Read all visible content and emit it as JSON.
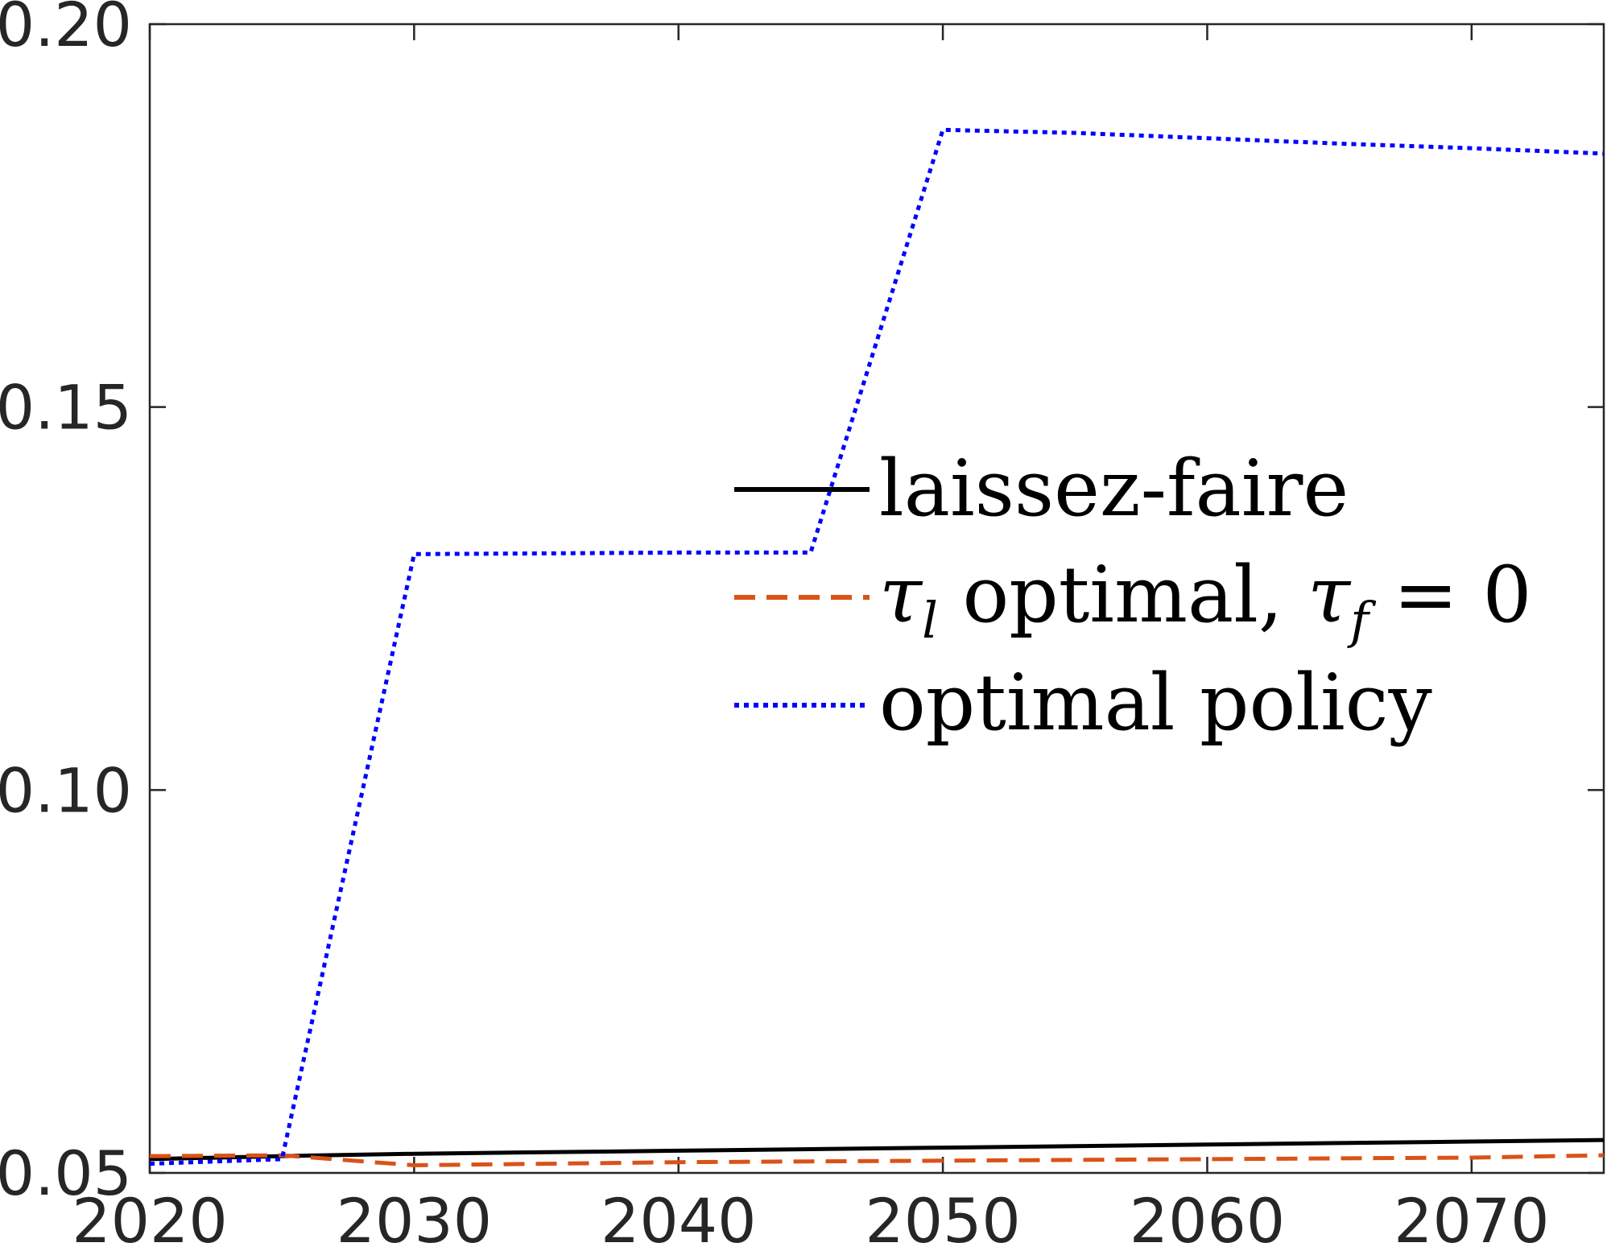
{
  "chart_data": {
    "type": "line",
    "title": "",
    "xlabel": "",
    "ylabel": "",
    "xlim": [
      2020,
      2075
    ],
    "ylim": [
      0.05,
      0.2
    ],
    "xticks": [
      2020,
      2030,
      2040,
      2050,
      2060,
      2070
    ],
    "xtick_labels": [
      "2020",
      "2030",
      "2040",
      "2050",
      "2060",
      "2070"
    ],
    "yticks": [
      0.05,
      0.1,
      0.15,
      0.2
    ],
    "ytick_labels": [
      "0.05",
      "0.10",
      "0.15",
      "0.20"
    ],
    "grid": false,
    "legend_position": "center-right",
    "x": [
      2020,
      2025,
      2030,
      2035,
      2040,
      2045,
      2050,
      2055,
      2060,
      2065,
      2070,
      2075
    ],
    "series": [
      {
        "name": "laissez-faire",
        "color": "#000000",
        "dash": "solid",
        "values": [
          0.0518,
          0.0522,
          0.0525,
          0.0527,
          0.0529,
          0.0531,
          0.0533,
          0.0535,
          0.0537,
          0.0539,
          0.0541,
          0.0543
        ]
      },
      {
        "name": "τl optimal, τf = 0",
        "name_parts": {
          "tau1": "τ",
          "sub1": "l",
          "mid": " optimal, ",
          "tau2": "τ",
          "sub2": "f",
          "tail": " = 0"
        },
        "color": "#D95319",
        "dash": "dashed",
        "values": [
          0.0522,
          0.0523,
          0.051,
          0.0512,
          0.0514,
          0.0515,
          0.0516,
          0.0517,
          0.0518,
          0.0519,
          0.052,
          0.0523
        ]
      },
      {
        "name": "optimal policy",
        "color": "#0000FF",
        "dash": "dotted",
        "values": [
          0.0512,
          0.0518,
          0.1308,
          0.1309,
          0.131,
          0.131,
          0.1862,
          0.1858,
          0.1851,
          0.1844,
          0.1838,
          0.1831
        ]
      }
    ]
  }
}
